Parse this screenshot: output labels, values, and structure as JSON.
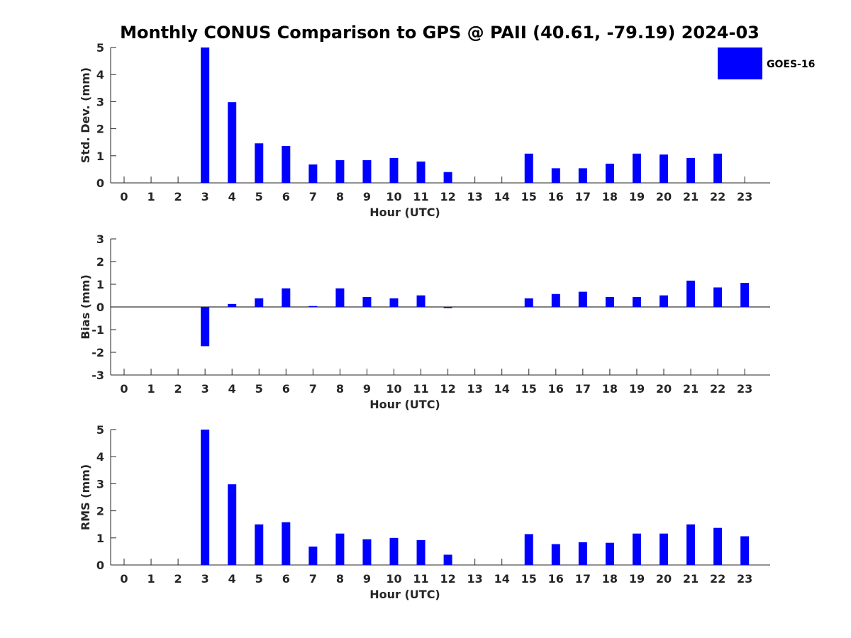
{
  "chart_data": {
    "type": "bar",
    "title": "Monthly CONUS Comparison to GPS @ PAII (40.61, -79.19) 2024-03",
    "legend": {
      "entries": [
        "GOES-16"
      ],
      "placement": "top-right"
    },
    "colors": {
      "series": "#0000ff",
      "axis": "#262626"
    },
    "panels": [
      {
        "ylabel": "Std. Dev. (mm)",
        "xlabel": "Hour (UTC)",
        "ylim": [
          0,
          5
        ],
        "yticks": [
          0,
          1,
          2,
          3,
          4,
          5
        ],
        "x": [
          0,
          1,
          2,
          3,
          4,
          5,
          6,
          7,
          8,
          9,
          10,
          11,
          12,
          13,
          14,
          15,
          16,
          17,
          18,
          19,
          20,
          21,
          22,
          23
        ],
        "series": [
          {
            "name": "GOES-16",
            "values": [
              null,
              null,
              null,
              5.0,
              2.98,
              1.46,
              1.36,
              0.68,
              0.84,
              0.84,
              0.92,
              0.79,
              0.4,
              null,
              null,
              1.08,
              0.54,
              0.54,
              0.71,
              1.08,
              1.05,
              0.92,
              1.08,
              null
            ]
          }
        ]
      },
      {
        "ylabel": "Bias (mm)",
        "xlabel": "Hour (UTC)",
        "ylim": [
          -3,
          3
        ],
        "yticks": [
          -3,
          -2,
          -1,
          0,
          1,
          2,
          3
        ],
        "x": [
          0,
          1,
          2,
          3,
          4,
          5,
          6,
          7,
          8,
          9,
          10,
          11,
          12,
          13,
          14,
          15,
          16,
          17,
          18,
          19,
          20,
          21,
          22,
          23
        ],
        "series": [
          {
            "name": "GOES-16",
            "values": [
              null,
              null,
              null,
              -1.73,
              0.13,
              0.38,
              0.82,
              0.04,
              0.82,
              0.44,
              0.38,
              0.51,
              -0.05,
              null,
              null,
              0.38,
              0.57,
              0.67,
              0.44,
              0.44,
              0.51,
              1.16,
              0.86,
              1.06
            ]
          }
        ]
      },
      {
        "ylabel": "RMS (mm)",
        "xlabel": "Hour (UTC)",
        "ylim": [
          0,
          5
        ],
        "yticks": [
          0,
          1,
          2,
          3,
          4,
          5
        ],
        "x": [
          0,
          1,
          2,
          3,
          4,
          5,
          6,
          7,
          8,
          9,
          10,
          11,
          12,
          13,
          14,
          15,
          16,
          17,
          18,
          19,
          20,
          21,
          22,
          23
        ],
        "series": [
          {
            "name": "GOES-16",
            "values": [
              null,
              null,
              null,
              5.0,
              2.98,
              1.5,
              1.58,
              0.68,
              1.16,
              0.95,
              1.0,
              0.92,
              0.38,
              null,
              null,
              1.14,
              0.77,
              0.84,
              0.82,
              1.16,
              1.16,
              1.5,
              1.37,
              1.06
            ]
          }
        ]
      }
    ]
  }
}
